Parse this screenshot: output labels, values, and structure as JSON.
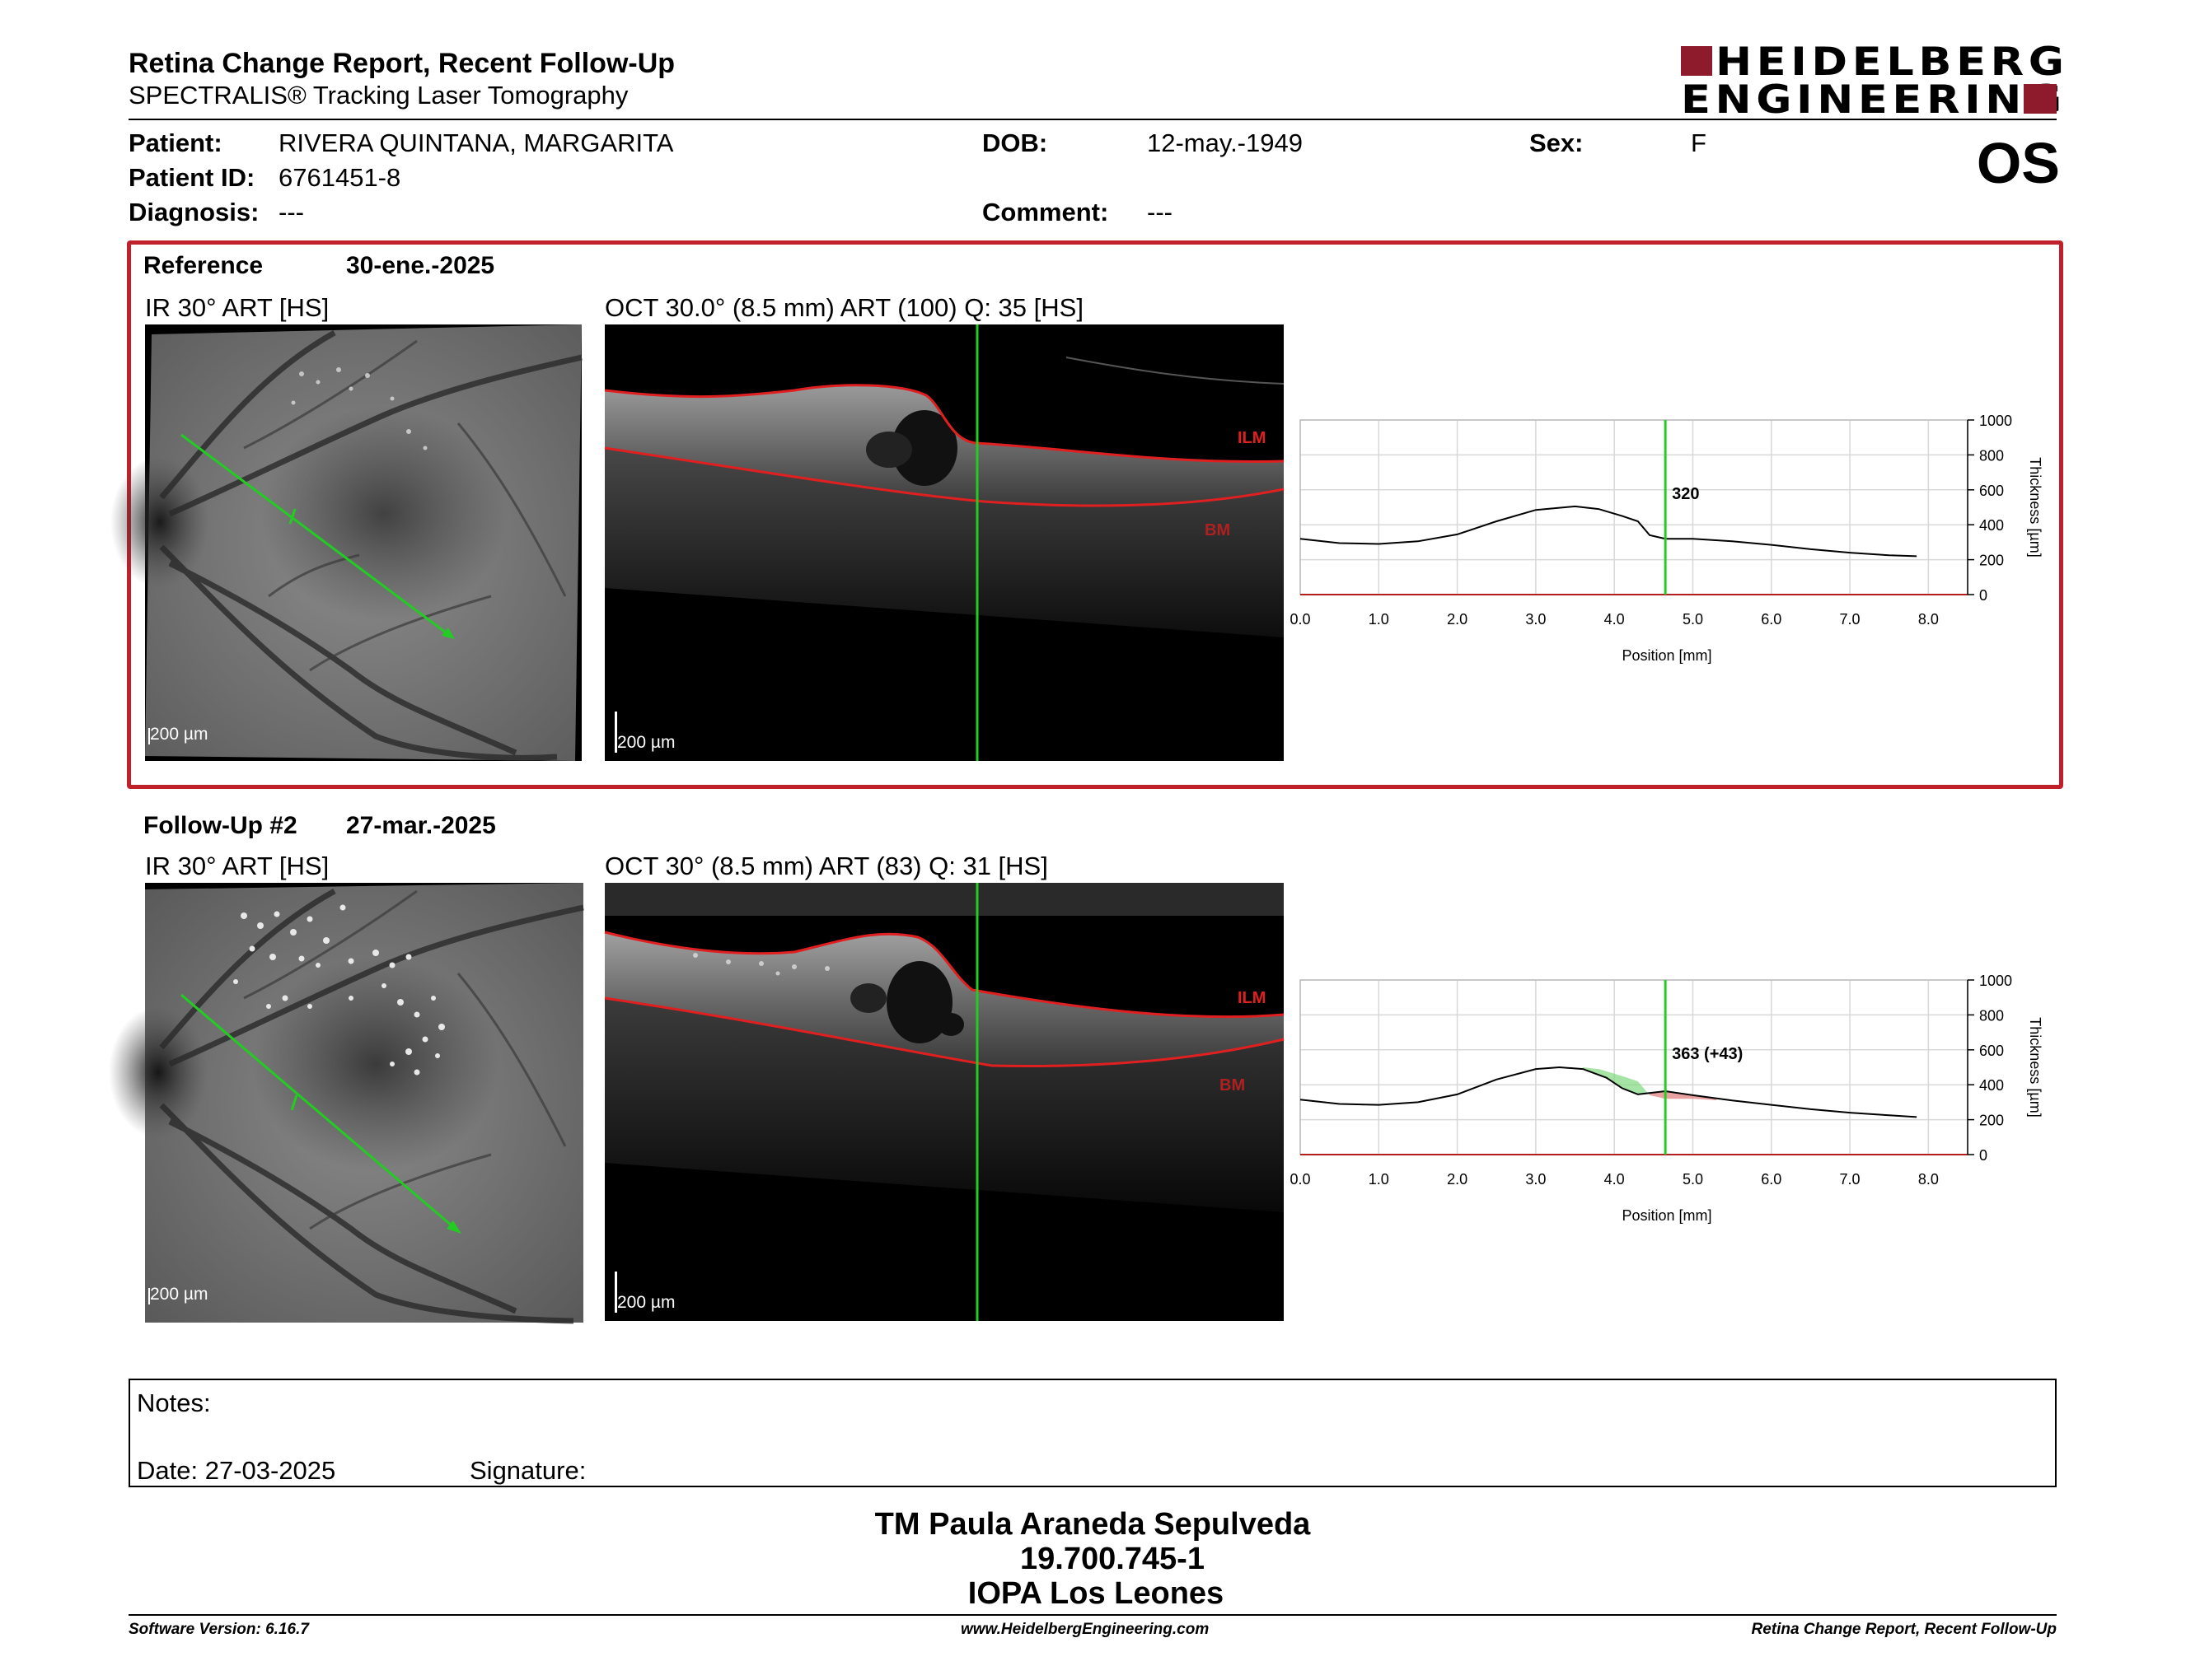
{
  "header": {
    "title": "Retina Change Report, Recent Follow-Up",
    "subtitle": "SPECTRALIS® Tracking Laser Tomography",
    "logo_line1": "HEIDELBERG",
    "logo_line2": "ENGINEERING",
    "eye": "OS"
  },
  "patient": {
    "patient_label": "Patient:",
    "patient_value": "RIVERA QUINTANA, MARGARITA",
    "id_label": "Patient ID:",
    "id_value": "6761451-8",
    "diagnosis_label": "Diagnosis:",
    "diagnosis_value": "---",
    "dob_label": "DOB:",
    "dob_value": "12-may.-1949",
    "comment_label": "Comment:",
    "comment_value": "---",
    "sex_label": "Sex:",
    "sex_value": "F"
  },
  "reference": {
    "label": "Reference",
    "date": "30-ene.-2025",
    "ir_caption": "IR 30° ART [HS]",
    "oct_caption": "OCT 30.0° (8.5 mm) ART (100) Q: 35 [HS]",
    "scale_ir": "200 µm",
    "scale_oct": "200 µm",
    "ilm": "ILM",
    "bm": "BM",
    "marker_value": "320"
  },
  "followup": {
    "label": "Follow-Up #2",
    "date": "27-mar.-2025",
    "ir_caption": "IR 30° ART [HS]",
    "oct_caption": "OCT 30° (8.5 mm) ART (83) Q: 31 [HS]",
    "scale_ir": "200 µm",
    "scale_oct": "200 µm",
    "ilm": "ILM",
    "bm": "BM",
    "marker_value": "363 (+43)"
  },
  "chart_data": [
    {
      "type": "line",
      "xlabel": "Position [mm]",
      "ylabel": "Thickness [µm]",
      "xlim": [
        0,
        8.5
      ],
      "ylim": [
        0,
        1000
      ],
      "x_ticks": [
        "0.0",
        "1.0",
        "2.0",
        "3.0",
        "4.0",
        "5.0",
        "6.0",
        "7.0",
        "8.0"
      ],
      "y_ticks": [
        "0",
        "200",
        "400",
        "600",
        "800",
        "1000"
      ],
      "marker_x": 4.65,
      "marker_label": "320",
      "series": [
        {
          "x": [
            0,
            0.5,
            1.0,
            1.5,
            2.0,
            2.5,
            3.0,
            3.5,
            3.8,
            4.1,
            4.3,
            4.45,
            4.65,
            5.0,
            5.5,
            6.0,
            6.5,
            7.0,
            7.5,
            7.85
          ],
          "values": [
            320,
            295,
            290,
            305,
            345,
            420,
            485,
            505,
            490,
            450,
            420,
            340,
            320,
            320,
            305,
            285,
            260,
            240,
            225,
            220
          ]
        }
      ]
    },
    {
      "type": "line",
      "xlabel": "Position [mm]",
      "ylabel": "Thickness [µm]",
      "xlim": [
        0,
        8.5
      ],
      "ylim": [
        0,
        1000
      ],
      "x_ticks": [
        "0.0",
        "1.0",
        "2.0",
        "3.0",
        "4.0",
        "5.0",
        "6.0",
        "7.0",
        "8.0"
      ],
      "y_ticks": [
        "0",
        "200",
        "400",
        "600",
        "800",
        "1000"
      ],
      "marker_x": 4.65,
      "marker_label": "363 (+43)",
      "series": [
        {
          "x": [
            0,
            0.5,
            1.0,
            1.5,
            2.0,
            2.5,
            3.0,
            3.3,
            3.6,
            3.9,
            4.1,
            4.3,
            4.65,
            5.0,
            5.5,
            6.0,
            6.5,
            7.0,
            7.5,
            7.85
          ],
          "values": [
            315,
            290,
            285,
            300,
            345,
            430,
            490,
            500,
            490,
            440,
            380,
            345,
            363,
            340,
            310,
            285,
            260,
            240,
            225,
            215
          ]
        }
      ]
    }
  ],
  "notes": {
    "notes_label": "Notes:",
    "date_label": "Date: 27-03-2025",
    "signature_label": "Signature:"
  },
  "signature_block": {
    "line1": "TM Paula Araneda Sepulveda",
    "line2": "19.700.745-1",
    "line3": "IOPA Los Leones"
  },
  "footer": {
    "software": "Software Version: 6.16.7",
    "website": "www.HeidelbergEngineering.com",
    "report": "Retina Change Report, Recent Follow-Up"
  }
}
